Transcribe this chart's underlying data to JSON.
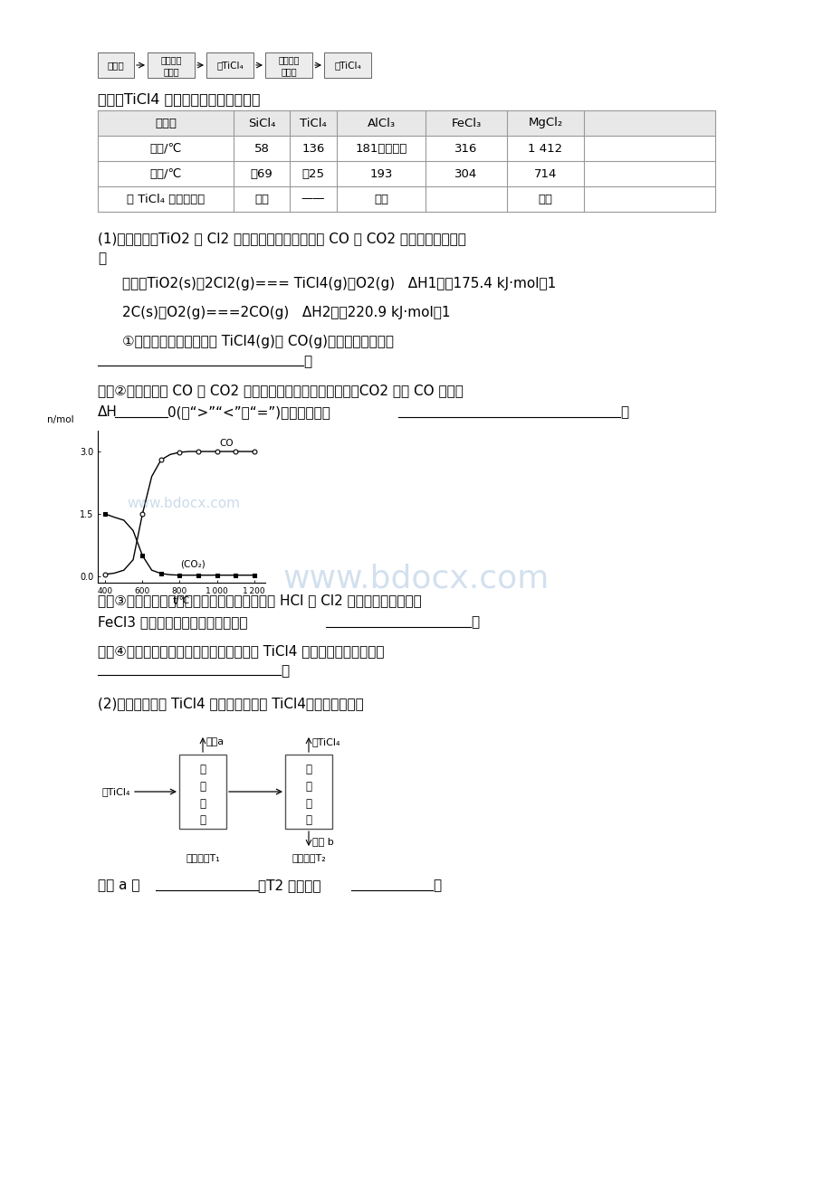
{
  "bg_color": "#ffffff",
  "resource_label": "资料：TiCl4 及所含杂质氯化物的性质",
  "table_headers": [
    "化合物",
    "SiCl₄",
    "TiCl₄",
    "AlCl₃",
    "FeCl₃",
    "MgCl₂"
  ],
  "table_row1_label": "汸点/℃",
  "table_row1": [
    "58",
    "136",
    "181（升华）",
    "316",
    "1 412"
  ],
  "table_row2_label": "燔点/℃",
  "table_row2": [
    "－69",
    "－25",
    "193",
    "304",
    "714"
  ],
  "table_row3_label": "在 TiCl₄ 中的溶解性",
  "table_row3": [
    "互溶",
    "——",
    "微溶",
    "",
    "难溶"
  ],
  "para1": "(1)氯化过程：TiO2 与 Cl2 难以直接反应，加碳生成 CO 和 CO2 可使反应得以进行",
  "para2": "已知：TiO2(s)＋2Cl2(g)=== TiCl4(g)＋O2(g)   ΔH1＝＋175.4 kJ·mol－1",
  "para3": "2C(s)＋O2(g)===2CO(g)   ΔH2＝－220.9 kJ·mol－1",
  "para4": "①汸腾炉中加碳氯化生成 TiCl4(g)和 CO(g)的热化学方程式：",
  "para5": "　　②氯化过程中 CO 和 CO2 可以相互转化，根据如图判断：CO2 生成 CO 反应的",
  "para5b": "ΔH________0(填“>”“<”或“=”)，判断依据：                                  。",
  "para6": "　　③氯化反应的尾气需处理后排放，尾气中的 HCl 和 Cl2 经吸收可得粗盐酸、",
  "para6b": "FeCl3 溶液，则尾气的吸收液依次是                 。",
  "para7": "　　④氯化产物冷却至室温，经过滤得到粗 TiCl4 混合液，则滤渣中含有",
  "para8": "(2)精制过程：粗 TiCl4 经两步蕊馏得纯 TiCl4。示意图如下：",
  "co_x": [
    400,
    450,
    500,
    550,
    600,
    650,
    700,
    750,
    800,
    850,
    900,
    950,
    1000,
    1050,
    1100,
    1150,
    1200
  ],
  "co_y": [
    0.05,
    0.08,
    0.15,
    0.4,
    1.5,
    2.4,
    2.8,
    2.93,
    2.98,
    3.0,
    3.0,
    3.0,
    3.0,
    3.0,
    3.0,
    3.0,
    3.0
  ],
  "co2_x": [
    400,
    450,
    500,
    550,
    600,
    650,
    700,
    750,
    800,
    850,
    900,
    950,
    1000,
    1050,
    1100,
    1150,
    1200
  ],
  "co2_y": [
    1.5,
    1.42,
    1.35,
    1.1,
    0.5,
    0.15,
    0.07,
    0.04,
    0.03,
    0.03,
    0.03,
    0.03,
    0.03,
    0.03,
    0.03,
    0.03,
    0.03
  ],
  "watermark": "www.bdocx.com"
}
